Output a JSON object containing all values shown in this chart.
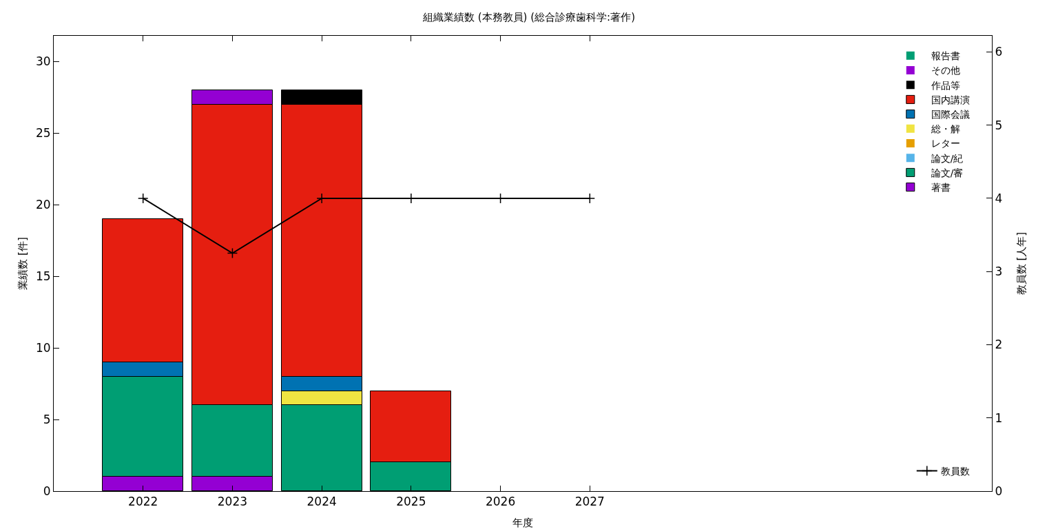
{
  "chart_data": {
    "type": "bar",
    "title": "組織業績数 (本務教員) (総合診療歯科学:著作)",
    "xlabel": "年度",
    "ylabel": "業績数 [件]",
    "y2label": "教員数 [人年]",
    "x": [
      2022,
      2023,
      2024,
      2025,
      2026,
      2027
    ],
    "stacked": true,
    "legend": "top right",
    "grid": false,
    "marker": "cross",
    "xlim": [
      2021,
      2031.5
    ],
    "xticks": [
      2022,
      2023,
      2024,
      2025,
      2026,
      2027
    ],
    "ylim": [
      0,
      31.8
    ],
    "yticks": [
      0,
      5,
      10,
      15,
      20,
      25,
      30
    ],
    "y2lim": [
      0,
      6.22
    ],
    "y2ticks": [
      0,
      1,
      2,
      3,
      4,
      5,
      6
    ],
    "series": [
      {
        "name": "著書",
        "color": "#9400d3",
        "values": [
          1,
          1,
          0,
          0,
          0,
          0
        ]
      },
      {
        "name": "論文/審",
        "color": "#009e73",
        "values": [
          7,
          5,
          6,
          2,
          0,
          0
        ]
      },
      {
        "name": "論文/紀",
        "color": "#56b4e9",
        "values": [
          0,
          0,
          0,
          0,
          0,
          0
        ]
      },
      {
        "name": "レター",
        "color": "#e69f00",
        "values": [
          0,
          0,
          0,
          0,
          0,
          0
        ]
      },
      {
        "name": "総・解",
        "color": "#f0e442",
        "values": [
          0,
          0,
          1,
          0,
          0,
          0
        ]
      },
      {
        "name": "国際会議",
        "color": "#0072b2",
        "values": [
          1,
          0,
          1,
          0,
          0,
          0
        ]
      },
      {
        "name": "国内講演",
        "color": "#e51e10",
        "values": [
          10,
          21,
          19,
          5,
          0,
          0
        ]
      },
      {
        "name": "作品等",
        "color": "#000000",
        "values": [
          0,
          0,
          1,
          0,
          0,
          0
        ]
      },
      {
        "name": "その他",
        "color": "#9400d3",
        "values": [
          0,
          1,
          0,
          0,
          0,
          0
        ]
      },
      {
        "name": "報告書",
        "color": "#009e73",
        "values": [
          0,
          0,
          0,
          0,
          0,
          0
        ]
      },
      {
        "name": "教員数",
        "type": "line",
        "axis": "y2",
        "color": "#000000",
        "values": [
          4,
          3.25,
          4,
          4,
          4,
          4
        ]
      }
    ]
  }
}
